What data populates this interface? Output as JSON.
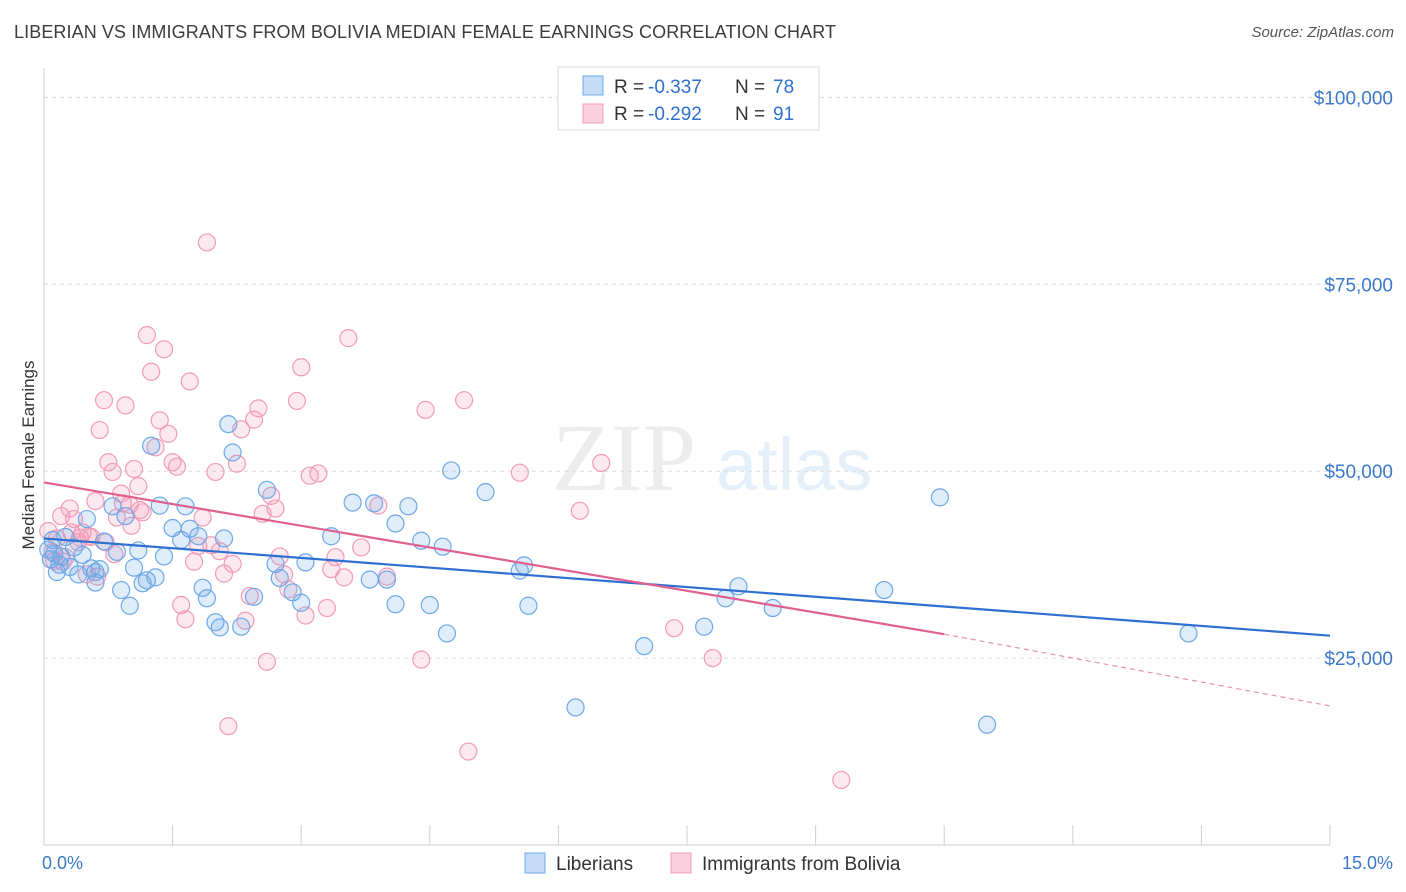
{
  "title": "LIBERIAN VS IMMIGRANTS FROM BOLIVIA MEDIAN FEMALE EARNINGS CORRELATION CHART",
  "source": "Source: ZipAtlas.com",
  "watermark": {
    "zip": "ZIP",
    "atlas": "atlas"
  },
  "colors": {
    "blue": "#6fa8e6",
    "blue_line": "#2f6fd0",
    "pink": "#f19bb8",
    "pink_line": "#e0608f",
    "axis_text": "#3b78c9"
  },
  "legend": {
    "rows": [
      {
        "r_label": "R = ",
        "r_value": "-0.337",
        "n_label": "N = ",
        "n_value": "78"
      },
      {
        "r_label": "R = ",
        "r_value": "-0.292",
        "n_label": "N = ",
        "n_value": "91"
      }
    ]
  },
  "chart_data": {
    "type": "scatter",
    "title": "LIBERIAN VS IMMIGRANTS FROM BOLIVIA MEDIAN FEMALE EARNINGS CORRELATION CHART",
    "xlabel": "",
    "ylabel": "Median Female Earnings",
    "xlim": [
      0,
      15
    ],
    "ylim": [
      0,
      105000
    ],
    "x_tick_labels": [
      "0.0%",
      "15.0%"
    ],
    "y_tick_labels": [
      "$25,000",
      "$50,000",
      "$75,000",
      "$100,000"
    ],
    "y_ticks": [
      25000,
      50000,
      75000,
      100000
    ],
    "grid": "horizontal dashed",
    "legend_position": "top-center",
    "series": [
      {
        "name": "Liberians",
        "color": "#6fa8e6",
        "trend": {
          "x": [
            0.0,
            15.0
          ],
          "y": [
            41000,
            28000
          ]
        },
        "points": [
          [
            0.05,
            39500
          ],
          [
            0.08,
            38200
          ],
          [
            0.1,
            40800
          ],
          [
            0.12,
            39000
          ],
          [
            0.15,
            36500
          ],
          [
            0.2,
            38600
          ],
          [
            0.25,
            41200
          ],
          [
            0.3,
            37200
          ],
          [
            0.35,
            39800
          ],
          [
            0.4,
            36200
          ],
          [
            0.45,
            38800
          ],
          [
            0.5,
            43600
          ],
          [
            0.55,
            37000
          ],
          [
            0.6,
            35100
          ],
          [
            0.65,
            36900
          ],
          [
            0.7,
            40600
          ],
          [
            0.8,
            45300
          ],
          [
            0.85,
            39200
          ],
          [
            0.9,
            34100
          ],
          [
            0.95,
            44000
          ],
          [
            1.0,
            32000
          ],
          [
            1.05,
            37100
          ],
          [
            1.1,
            39400
          ],
          [
            1.15,
            35000
          ],
          [
            1.2,
            35400
          ],
          [
            1.25,
            53400
          ],
          [
            1.3,
            35800
          ],
          [
            1.35,
            45400
          ],
          [
            1.4,
            38600
          ],
          [
            1.5,
            42400
          ],
          [
            1.6,
            40800
          ],
          [
            1.65,
            45300
          ],
          [
            1.7,
            42300
          ],
          [
            1.8,
            41300
          ],
          [
            1.85,
            34400
          ],
          [
            1.9,
            33000
          ],
          [
            2.0,
            29800
          ],
          [
            2.05,
            29100
          ],
          [
            2.1,
            41000
          ],
          [
            2.15,
            56300
          ],
          [
            2.2,
            52500
          ],
          [
            2.3,
            29200
          ],
          [
            2.45,
            33200
          ],
          [
            2.6,
            47500
          ],
          [
            2.7,
            37600
          ],
          [
            2.75,
            35700
          ],
          [
            2.9,
            33800
          ],
          [
            3.0,
            32400
          ],
          [
            3.05,
            37800
          ],
          [
            3.35,
            41300
          ],
          [
            3.6,
            45800
          ],
          [
            3.8,
            35500
          ],
          [
            3.85,
            45700
          ],
          [
            4.0,
            35500
          ],
          [
            4.1,
            43000
          ],
          [
            4.1,
            32200
          ],
          [
            4.25,
            45300
          ],
          [
            4.4,
            40700
          ],
          [
            4.5,
            32100
          ],
          [
            4.65,
            39900
          ],
          [
            4.7,
            28300
          ],
          [
            4.75,
            50100
          ],
          [
            5.15,
            47200
          ],
          [
            5.55,
            36700
          ],
          [
            5.6,
            37400
          ],
          [
            5.65,
            32000
          ],
          [
            6.2,
            18400
          ],
          [
            7.0,
            26600
          ],
          [
            7.7,
            29200
          ],
          [
            7.95,
            33000
          ],
          [
            8.1,
            34600
          ],
          [
            8.5,
            31700
          ],
          [
            9.8,
            34100
          ],
          [
            10.45,
            46500
          ],
          [
            11.0,
            16100
          ],
          [
            13.35,
            28300
          ],
          [
            0.18,
            37500
          ],
          [
            0.6,
            36500
          ]
        ]
      },
      {
        "name": "Immigrants from Bolivia",
        "color": "#f19bb8",
        "trend": {
          "x": [
            0.0,
            10.5
          ],
          "y": [
            48500,
            28200
          ]
        },
        "trend_dashed": {
          "x": [
            10.5,
            15.0
          ],
          "y": [
            28200,
            18600
          ]
        },
        "points": [
          [
            0.05,
            42000
          ],
          [
            0.1,
            39200
          ],
          [
            0.15,
            41000
          ],
          [
            0.2,
            44000
          ],
          [
            0.25,
            38500
          ],
          [
            0.3,
            45000
          ],
          [
            0.35,
            43600
          ],
          [
            0.4,
            40500
          ],
          [
            0.45,
            41800
          ],
          [
            0.5,
            36200
          ],
          [
            0.55,
            41200
          ],
          [
            0.6,
            46000
          ],
          [
            0.65,
            55500
          ],
          [
            0.7,
            59500
          ],
          [
            0.75,
            51200
          ],
          [
            0.8,
            49900
          ],
          [
            0.85,
            43800
          ],
          [
            0.9,
            47000
          ],
          [
            0.95,
            58800
          ],
          [
            1.0,
            45500
          ],
          [
            1.05,
            50300
          ],
          [
            1.1,
            48000
          ],
          [
            1.15,
            44500
          ],
          [
            1.2,
            68200
          ],
          [
            1.25,
            63300
          ],
          [
            1.3,
            53200
          ],
          [
            1.35,
            56800
          ],
          [
            1.4,
            66300
          ],
          [
            1.45,
            55000
          ],
          [
            1.5,
            51200
          ],
          [
            1.55,
            50600
          ],
          [
            1.6,
            32100
          ],
          [
            1.65,
            30200
          ],
          [
            1.7,
            62000
          ],
          [
            1.75,
            37900
          ],
          [
            1.8,
            40000
          ],
          [
            1.85,
            43800
          ],
          [
            1.9,
            80600
          ],
          [
            1.95,
            40100
          ],
          [
            2.0,
            49900
          ],
          [
            2.05,
            39300
          ],
          [
            2.1,
            36300
          ],
          [
            2.15,
            15900
          ],
          [
            2.2,
            37600
          ],
          [
            2.25,
            51000
          ],
          [
            2.3,
            55600
          ],
          [
            2.35,
            30000
          ],
          [
            2.4,
            33300
          ],
          [
            2.45,
            56900
          ],
          [
            2.5,
            58400
          ],
          [
            2.55,
            44300
          ],
          [
            2.6,
            24500
          ],
          [
            2.65,
            46700
          ],
          [
            2.7,
            45000
          ],
          [
            2.75,
            38600
          ],
          [
            2.8,
            36200
          ],
          [
            2.85,
            34200
          ],
          [
            2.95,
            59400
          ],
          [
            3.0,
            63900
          ],
          [
            3.05,
            30700
          ],
          [
            3.1,
            49400
          ],
          [
            3.2,
            49700
          ],
          [
            3.3,
            31700
          ],
          [
            3.35,
            36900
          ],
          [
            3.4,
            38500
          ],
          [
            3.5,
            35800
          ],
          [
            3.55,
            67800
          ],
          [
            3.7,
            39800
          ],
          [
            3.9,
            45400
          ],
          [
            4.0,
            35900
          ],
          [
            4.4,
            24800
          ],
          [
            4.45,
            58200
          ],
          [
            4.9,
            59500
          ],
          [
            4.95,
            12500
          ],
          [
            5.55,
            49800
          ],
          [
            6.25,
            44700
          ],
          [
            6.5,
            51100
          ],
          [
            7.35,
            29000
          ],
          [
            7.8,
            25000
          ],
          [
            9.3,
            8700
          ],
          [
            0.12,
            38000
          ],
          [
            0.22,
            37900
          ],
          [
            0.32,
            41800
          ],
          [
            0.42,
            41100
          ],
          [
            0.52,
            41300
          ],
          [
            0.62,
            35900
          ],
          [
            0.72,
            40500
          ],
          [
            0.82,
            38900
          ],
          [
            0.92,
            45700
          ],
          [
            1.02,
            42700
          ],
          [
            1.12,
            44800
          ]
        ]
      }
    ]
  },
  "bottom_legend": {
    "items": [
      {
        "label": "Liberians"
      },
      {
        "label": "Immigrants from Bolivia"
      }
    ]
  }
}
